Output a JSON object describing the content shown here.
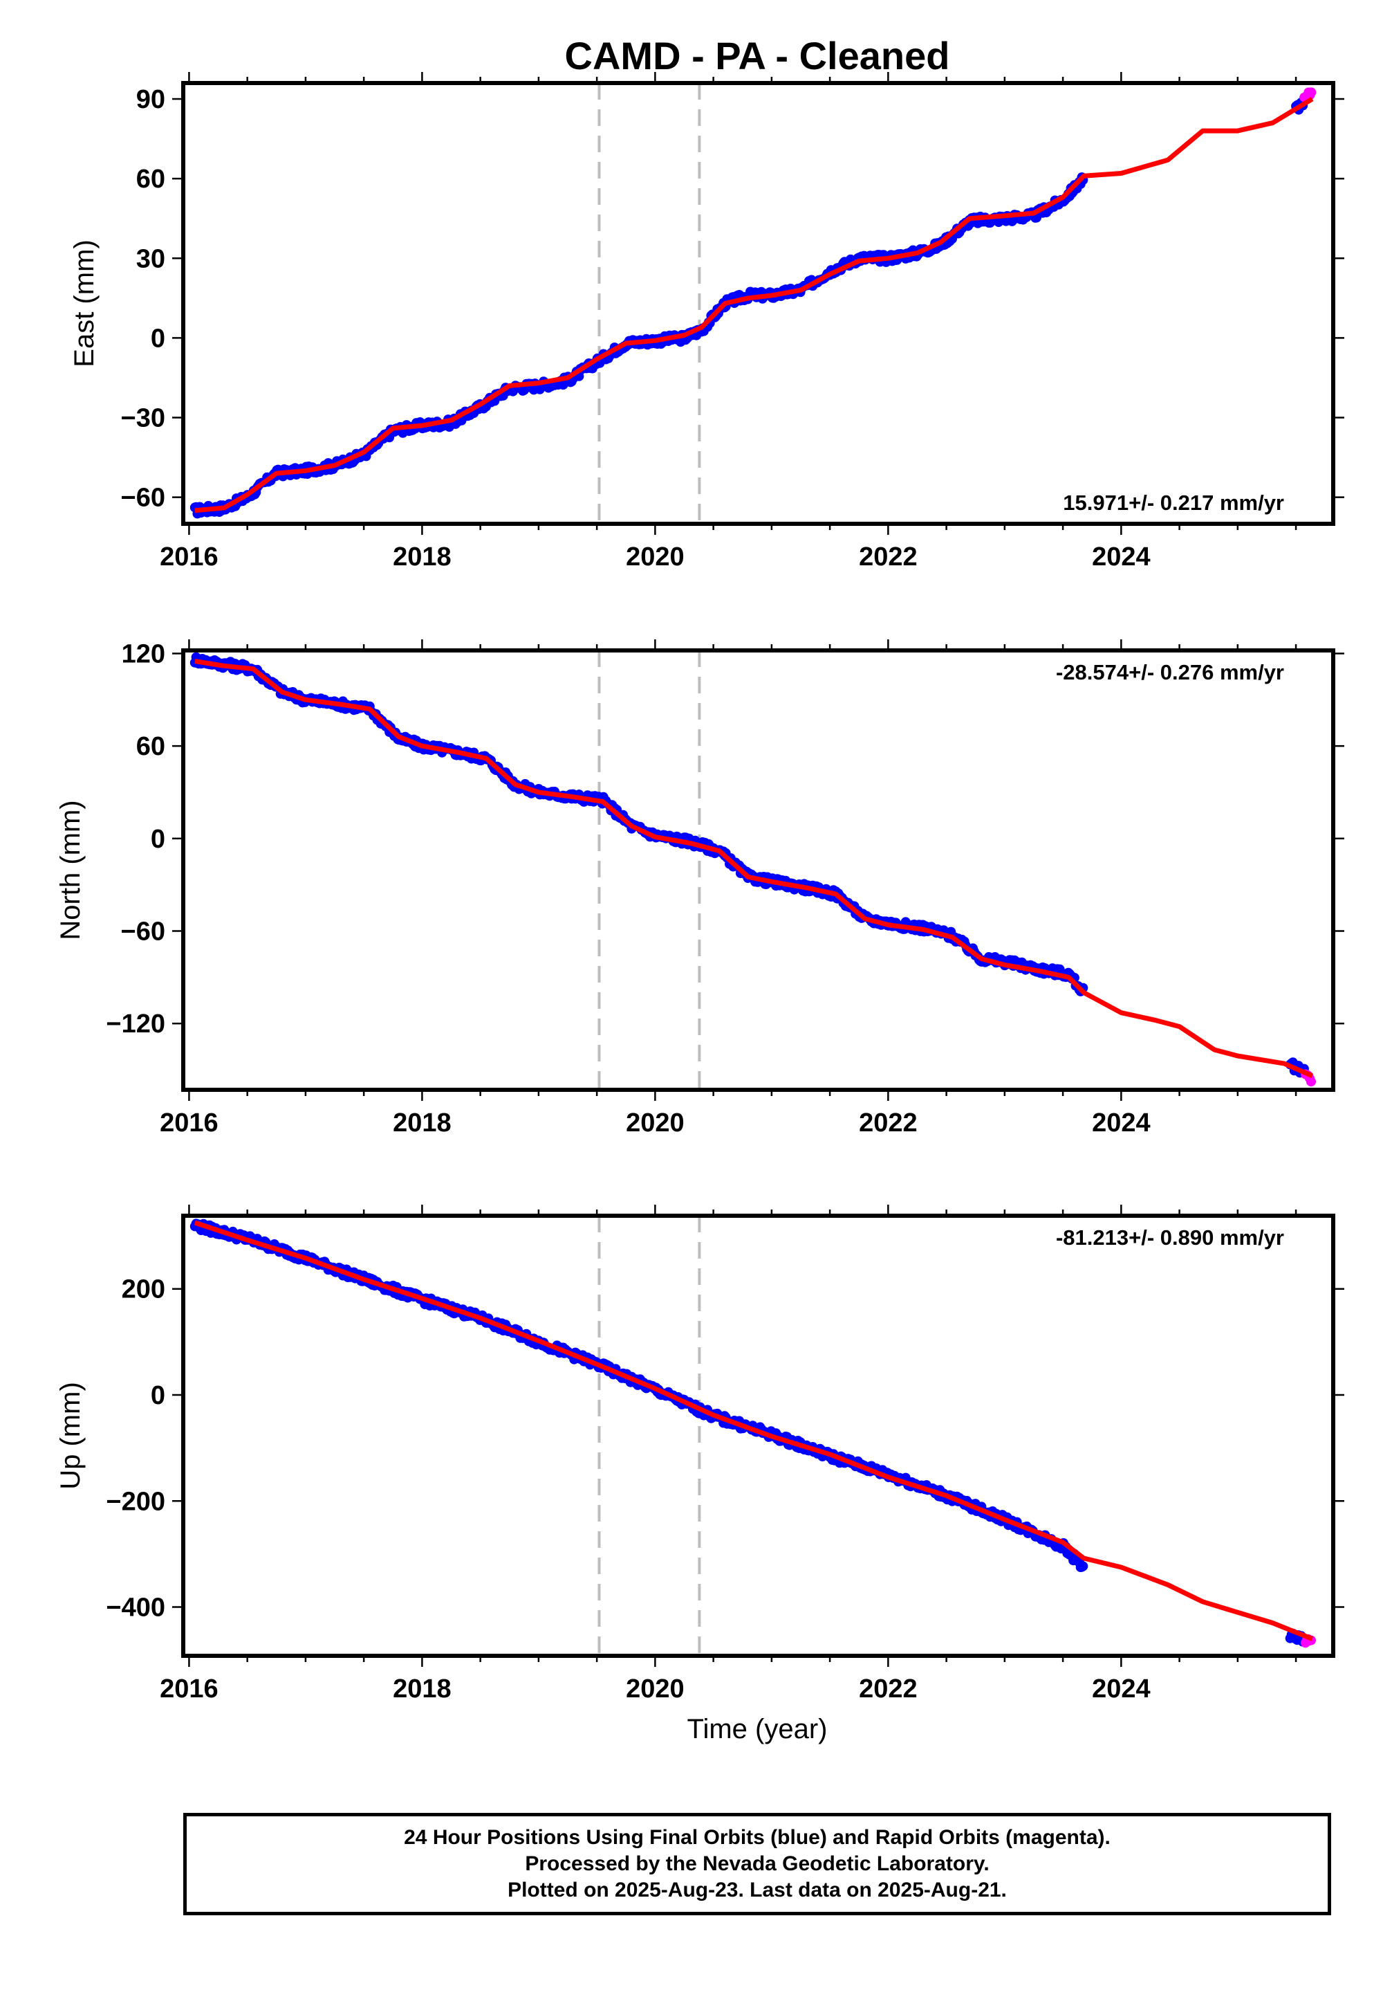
{
  "colors": {
    "final": "#0000ff",
    "rapid": "#ff00ff",
    "model": "#ff0000",
    "event": "#bdbdbd"
  },
  "chart_data": [
    {
      "type": "scatter",
      "title": "CAMD  - PA - Cleaned",
      "ylabel": "East (mm)",
      "xlabel": "",
      "xlim": [
        2015.95,
        2025.82
      ],
      "ylim": [
        -70,
        96
      ],
      "xticks": [
        "2016",
        "2018",
        "2020",
        "2022",
        "2024"
      ],
      "yticks": [
        "90",
        "60",
        "30",
        "0",
        "−30",
        "−60"
      ],
      "event_lines": [
        2019.52,
        2020.38
      ],
      "rate": "15.971+/- 0.217 mm/yr",
      "series": [
        {
          "name": "final",
          "x": [
            2016.05,
            2016.3,
            2016.5,
            2016.75,
            2017.0,
            2017.25,
            2017.5,
            2017.75,
            2018.0,
            2018.25,
            2018.5,
            2018.75,
            2019.0,
            2019.25,
            2019.5,
            2019.75,
            2020.0,
            2020.25,
            2020.4,
            2020.6,
            2020.8,
            2021.0,
            2021.25,
            2021.5,
            2021.75,
            2022.0,
            2022.25,
            2022.45,
            2022.7,
            2023.0,
            2023.25,
            2023.5,
            2023.68
          ],
          "y": [
            -65,
            -64,
            -60,
            -51,
            -50,
            -48,
            -44,
            -35,
            -33,
            -32,
            -26,
            -19,
            -18,
            -16,
            -9,
            -2,
            -1,
            0,
            3,
            13,
            16,
            16,
            18,
            25,
            30,
            30,
            32,
            35,
            44,
            45,
            46,
            52,
            60
          ]
        },
        {
          "name": "rapid",
          "x": [
            2025.5,
            2025.58,
            2025.64
          ],
          "y": [
            86,
            90,
            93
          ]
        },
        {
          "name": "model",
          "x": [
            2016.05,
            2016.3,
            2016.5,
            2016.75,
            2017.0,
            2017.25,
            2017.5,
            2017.75,
            2018.0,
            2018.25,
            2018.5,
            2018.75,
            2019.0,
            2019.25,
            2019.5,
            2019.75,
            2020.0,
            2020.25,
            2020.4,
            2020.6,
            2020.8,
            2021.0,
            2021.25,
            2021.5,
            2021.75,
            2022.0,
            2022.25,
            2022.45,
            2022.7,
            2023.0,
            2023.25,
            2023.5,
            2023.68,
            2024.0,
            2024.4,
            2024.7,
            2025.0,
            2025.3,
            2025.64
          ],
          "y": [
            -65,
            -64,
            -59,
            -51,
            -50,
            -48,
            -43,
            -34,
            -33,
            -31,
            -25,
            -18,
            -17,
            -15,
            -8,
            -2,
            -1,
            1,
            4,
            13,
            15,
            16,
            18,
            24,
            29,
            30,
            32,
            36,
            45,
            46,
            47,
            53,
            61,
            62,
            67,
            78,
            78,
            81,
            90
          ]
        }
      ]
    },
    {
      "type": "scatter",
      "title": "",
      "ylabel": "North (mm)",
      "xlabel": "",
      "xlim": [
        2015.95,
        2025.82
      ],
      "ylim": [
        -163,
        122
      ],
      "xticks": [
        "2016",
        "2018",
        "2020",
        "2022",
        "2024"
      ],
      "yticks": [
        "120",
        "60",
        "0",
        "−60",
        "−120"
      ],
      "event_lines": [
        2019.52,
        2020.38
      ],
      "rate": "-28.574+/- 0.276 mm/yr",
      "series": [
        {
          "name": "final",
          "x": [
            2016.05,
            2016.3,
            2016.55,
            2016.8,
            2017.0,
            2017.3,
            2017.55,
            2017.8,
            2018.0,
            2018.3,
            2018.55,
            2018.8,
            2019.0,
            2019.3,
            2019.55,
            2019.8,
            2020.0,
            2020.3,
            2020.55,
            2020.8,
            2021.0,
            2021.3,
            2021.55,
            2021.8,
            2022.0,
            2022.3,
            2022.55,
            2022.8,
            2023.0,
            2023.3,
            2023.55,
            2023.68
          ],
          "y": [
            116,
            113,
            110,
            95,
            90,
            87,
            84,
            65,
            60,
            56,
            52,
            35,
            30,
            27,
            25,
            8,
            2,
            -2,
            -8,
            -25,
            -28,
            -32,
            -36,
            -52,
            -55,
            -58,
            -63,
            -78,
            -80,
            -85,
            -88,
            -100
          ]
        },
        {
          "name": "rapid",
          "x": [
            2025.45,
            2025.55,
            2025.64
          ],
          "y": [
            -147,
            -150,
            -156
          ]
        },
        {
          "name": "model",
          "x": [
            2016.05,
            2016.3,
            2016.55,
            2016.8,
            2017.0,
            2017.3,
            2017.55,
            2017.8,
            2018.0,
            2018.3,
            2018.55,
            2018.8,
            2019.0,
            2019.3,
            2019.55,
            2019.8,
            2020.0,
            2020.3,
            2020.55,
            2020.8,
            2021.0,
            2021.3,
            2021.55,
            2021.8,
            2022.0,
            2022.3,
            2022.55,
            2022.8,
            2023.0,
            2023.3,
            2023.55,
            2023.68,
            2024.0,
            2024.3,
            2024.5,
            2024.8,
            2025.0,
            2025.4,
            2025.64
          ],
          "y": [
            115,
            112,
            110,
            95,
            90,
            87,
            84,
            66,
            60,
            56,
            52,
            35,
            30,
            27,
            24,
            8,
            1,
            -3,
            -8,
            -25,
            -28,
            -32,
            -36,
            -52,
            -56,
            -59,
            -64,
            -78,
            -82,
            -86,
            -90,
            -100,
            -113,
            -118,
            -122,
            -137,
            -141,
            -146,
            -154
          ]
        }
      ]
    },
    {
      "type": "scatter",
      "title": "",
      "ylabel": "Up (mm)",
      "xlabel": "Time (year)",
      "xlim": [
        2015.95,
        2025.82
      ],
      "ylim": [
        -492,
        338
      ],
      "xticks": [
        "2016",
        "2018",
        "2020",
        "2022",
        "2024"
      ],
      "yticks": [
        "200",
        "0",
        "−200",
        "−400"
      ],
      "event_lines": [
        2019.52,
        2020.38
      ],
      "rate": "-81.213+/- 0.890 mm/yr",
      "series": [
        {
          "name": "final",
          "x": [
            2016.05,
            2016.5,
            2017.0,
            2017.5,
            2018.0,
            2018.5,
            2019.0,
            2019.5,
            2020.0,
            2020.5,
            2021.0,
            2021.5,
            2022.0,
            2022.5,
            2023.0,
            2023.5,
            2023.68
          ],
          "y": [
            320,
            295,
            258,
            218,
            180,
            145,
            100,
            58,
            10,
            -40,
            -75,
            -115,
            -150,
            -190,
            -235,
            -285,
            -325
          ]
        },
        {
          "name": "rapid",
          "x": [
            2025.45,
            2025.55,
            2025.64
          ],
          "y": [
            -455,
            -460,
            -470
          ]
        },
        {
          "name": "model",
          "x": [
            2016.05,
            2016.5,
            2017.0,
            2017.5,
            2018.0,
            2018.5,
            2019.0,
            2019.5,
            2020.0,
            2020.5,
            2021.0,
            2021.5,
            2022.0,
            2022.5,
            2023.0,
            2023.5,
            2023.68,
            2024.0,
            2024.4,
            2024.7,
            2025.0,
            2025.3,
            2025.64
          ],
          "y": [
            325,
            292,
            258,
            218,
            182,
            145,
            102,
            58,
            12,
            -38,
            -78,
            -112,
            -155,
            -190,
            -235,
            -278,
            -308,
            -325,
            -358,
            -390,
            -410,
            -430,
            -460
          ]
        }
      ]
    }
  ],
  "footer": {
    "line1": "24 Hour Positions Using Final Orbits (blue) and Rapid Orbits (magenta).",
    "line2": "Processed by the Nevada Geodetic Laboratory.",
    "line3": "Plotted on 2025-Aug-23. Last data on 2025-Aug-21."
  }
}
